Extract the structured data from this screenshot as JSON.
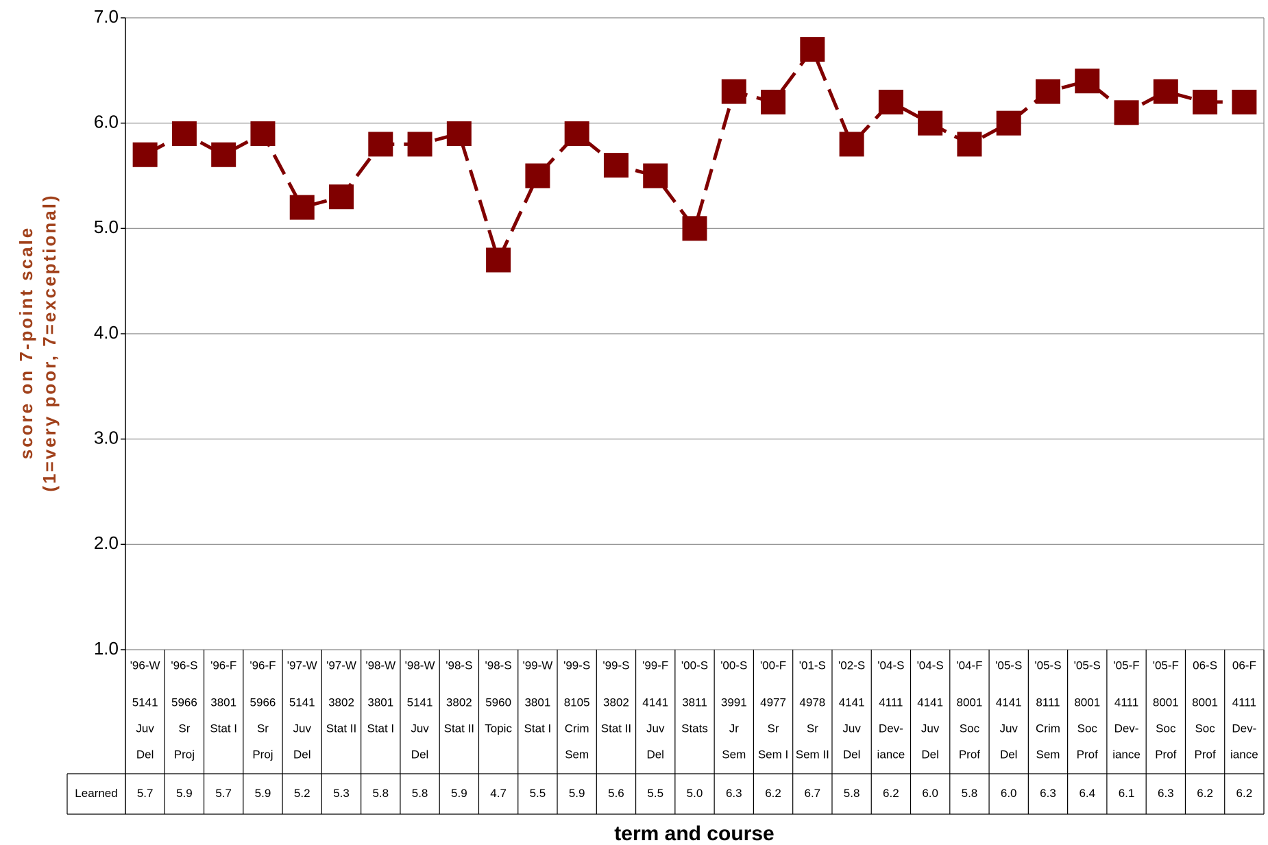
{
  "chart_data": {
    "type": "line",
    "y_label": [
      "score on 7-point scale",
      "(1=very poor,  7=exceptional)"
    ],
    "x_label": "term and course",
    "categories": [
      [
        "'96-W",
        "5141",
        "Juv",
        "Del"
      ],
      [
        "'96-S",
        "5966",
        "Sr",
        "Proj"
      ],
      [
        "'96-F",
        "3801",
        "Stat I"
      ],
      [
        "'96-F",
        "5966",
        "Sr",
        "Proj"
      ],
      [
        "'97-W",
        "5141",
        "Juv",
        "Del"
      ],
      [
        "'97-W",
        "3802",
        "Stat II"
      ],
      [
        "'98-W",
        "3801",
        "Stat I"
      ],
      [
        "'98-W",
        "5141",
        "Juv",
        "Del"
      ],
      [
        "'98-S",
        "3802",
        "Stat II"
      ],
      [
        "'98-S",
        "5960",
        "Topic"
      ],
      [
        "'99-W",
        "3801",
        "Stat I"
      ],
      [
        "'99-S",
        "8105",
        "Crim",
        "Sem"
      ],
      [
        "'99-S",
        "3802",
        "Stat II"
      ],
      [
        "'99-F",
        "4141",
        "Juv",
        "Del"
      ],
      [
        "'00-S",
        "3811",
        "Stats"
      ],
      [
        "'00-S",
        "3991",
        "Jr",
        "Sem"
      ],
      [
        "'00-F",
        "4977",
        "Sr",
        "Sem I"
      ],
      [
        "'01-S",
        "4978",
        "Sr",
        "Sem II"
      ],
      [
        "'02-S",
        "4141",
        "Juv",
        "Del"
      ],
      [
        "'04-S",
        "4111",
        "Dev-",
        "iance"
      ],
      [
        "'04-S",
        "4141",
        "Juv",
        "Del"
      ],
      [
        "'04-F",
        "8001",
        "Soc",
        "Prof"
      ],
      [
        "'05-S",
        "4141",
        "Juv",
        "Del"
      ],
      [
        "'05-S",
        "8111",
        "Crim",
        "Sem"
      ],
      [
        "'05-S",
        "8001",
        "Soc",
        "Prof"
      ],
      [
        "'05-F",
        "4111",
        "Dev-",
        "iance"
      ],
      [
        "'05-F",
        "8001",
        "Soc",
        "Prof"
      ],
      [
        "06-S",
        "8001",
        "Soc",
        "Prof"
      ],
      [
        "06-F",
        "4111",
        "Dev-",
        "iance"
      ]
    ],
    "series": [
      {
        "name": "Learned",
        "color": "#800000",
        "values": [
          5.7,
          5.9,
          5.7,
          5.9,
          5.2,
          5.3,
          5.8,
          5.8,
          5.9,
          4.7,
          5.5,
          5.9,
          5.6,
          5.5,
          5.0,
          6.3,
          6.2,
          6.7,
          5.8,
          6.2,
          6.0,
          5.8,
          6.0,
          6.3,
          6.4,
          6.1,
          6.3,
          6.2,
          6.2
        ],
        "value_labels": [
          "5.7",
          "5.9",
          "5.7",
          "5.9",
          "5.2",
          "5.3",
          "5.8",
          "5.8",
          "5.9",
          "4.7",
          "5.5",
          "5.9",
          "5.6",
          "5.5",
          "5.0",
          "6.3",
          "6.2",
          "6.7",
          "5.8",
          "6.2",
          "6.0",
          "5.8",
          "6.0",
          "6.3",
          "6.4",
          "6.1",
          "6.3",
          "6.2",
          "6.2"
        ]
      }
    ],
    "ylim": [
      1,
      7
    ],
    "yticks": [
      {
        "value": 1,
        "label": "1.0"
      },
      {
        "value": 2,
        "label": "2.0"
      },
      {
        "value": 3,
        "label": "3.0"
      },
      {
        "value": 4,
        "label": "4.0"
      },
      {
        "value": 5,
        "label": "5.0"
      },
      {
        "value": 6,
        "label": "6.0"
      },
      {
        "value": 7,
        "label": "7.0"
      }
    ],
    "grid": true
  }
}
